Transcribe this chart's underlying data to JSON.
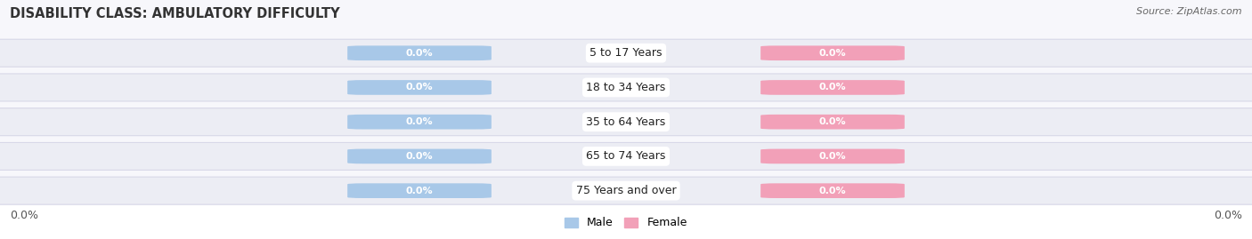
{
  "title": "DISABILITY CLASS: AMBULATORY DIFFICULTY",
  "source": "Source: ZipAtlas.com",
  "categories": [
    "5 to 17 Years",
    "18 to 34 Years",
    "35 to 64 Years",
    "65 to 74 Years",
    "75 Years and over"
  ],
  "male_values": [
    0.0,
    0.0,
    0.0,
    0.0,
    0.0
  ],
  "female_values": [
    0.0,
    0.0,
    0.0,
    0.0,
    0.0
  ],
  "male_color": "#a8c8e8",
  "female_color": "#f2a0b8",
  "row_bg_color": "#ecedf4",
  "xlim_left": "0.0%",
  "xlim_right": "0.0%",
  "title_fontsize": 10.5,
  "source_fontsize": 8,
  "category_fontsize": 9,
  "value_fontsize": 8,
  "legend_fontsize": 9,
  "legend_male": "Male",
  "legend_female": "Female",
  "background_color": "#f7f7fb",
  "bottom_bg_color": "#ffffff"
}
